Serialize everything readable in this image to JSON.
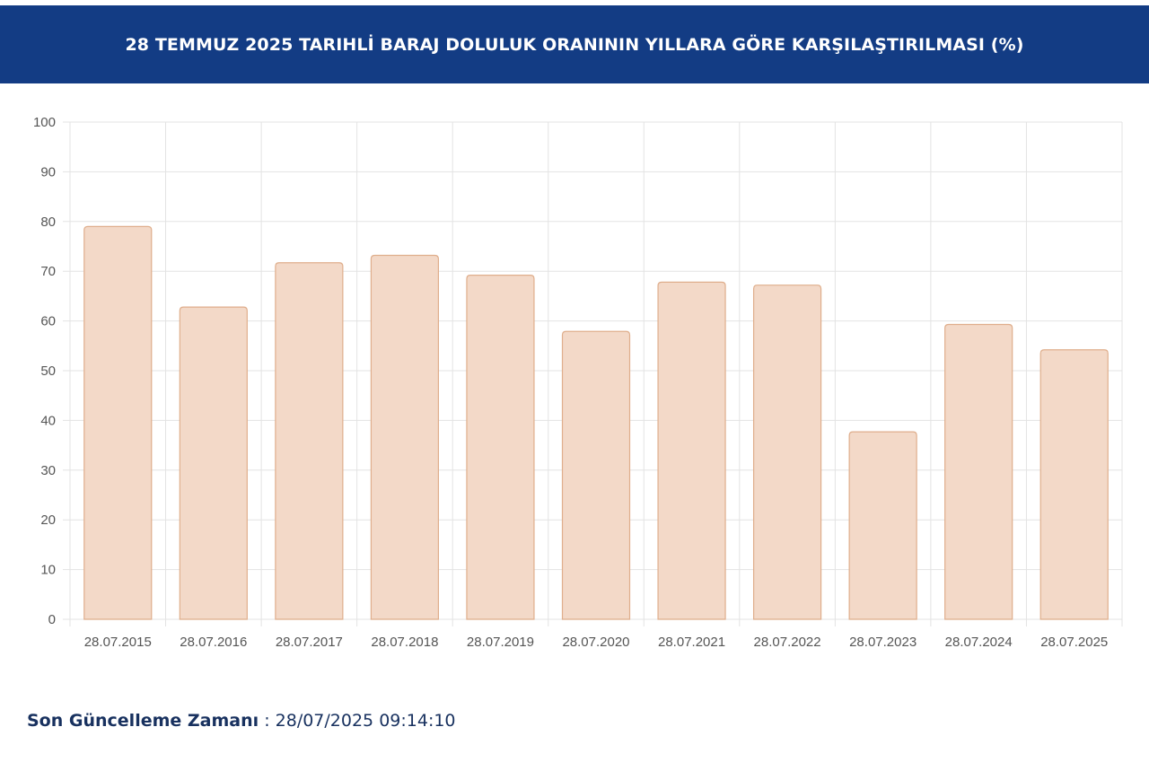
{
  "header": {
    "title": "28 TEMMUZ 2025 TARIHLİ BARAJ DOLULUK ORANININ YILLARA GÖRE KARŞILAŞTIRILMASI (%)"
  },
  "footer": {
    "label": "Son Güncelleme Zamanı",
    "separator": " : ",
    "value": "28/07/2025 09:14:10"
  },
  "colors": {
    "header_bg": "#133c84",
    "bar_fill": "#f3d9c8",
    "bar_stroke": "#dfae8c",
    "grid": "#e3e3e3",
    "tick_text": "#555555"
  },
  "chart_data": {
    "type": "bar",
    "title": "28 TEMMUZ 2025 TARIHLİ BARAJ DOLULUK ORANININ YILLARA GÖRE KARŞILAŞTIRILMASI (%)",
    "categories": [
      "28.07.2015",
      "28.07.2016",
      "28.07.2017",
      "28.07.2018",
      "28.07.2019",
      "28.07.2020",
      "28.07.2021",
      "28.07.2022",
      "28.07.2023",
      "28.07.2024",
      "28.07.2025"
    ],
    "values": [
      79.0,
      62.8,
      71.7,
      73.2,
      69.2,
      57.9,
      67.8,
      67.2,
      37.7,
      59.3,
      54.2
    ],
    "ylim": [
      0,
      100
    ],
    "yticks": [
      0,
      10,
      20,
      30,
      40,
      50,
      60,
      70,
      80,
      90,
      100
    ],
    "xlabel": "",
    "ylabel": "",
    "grid": true,
    "legend": "none"
  }
}
